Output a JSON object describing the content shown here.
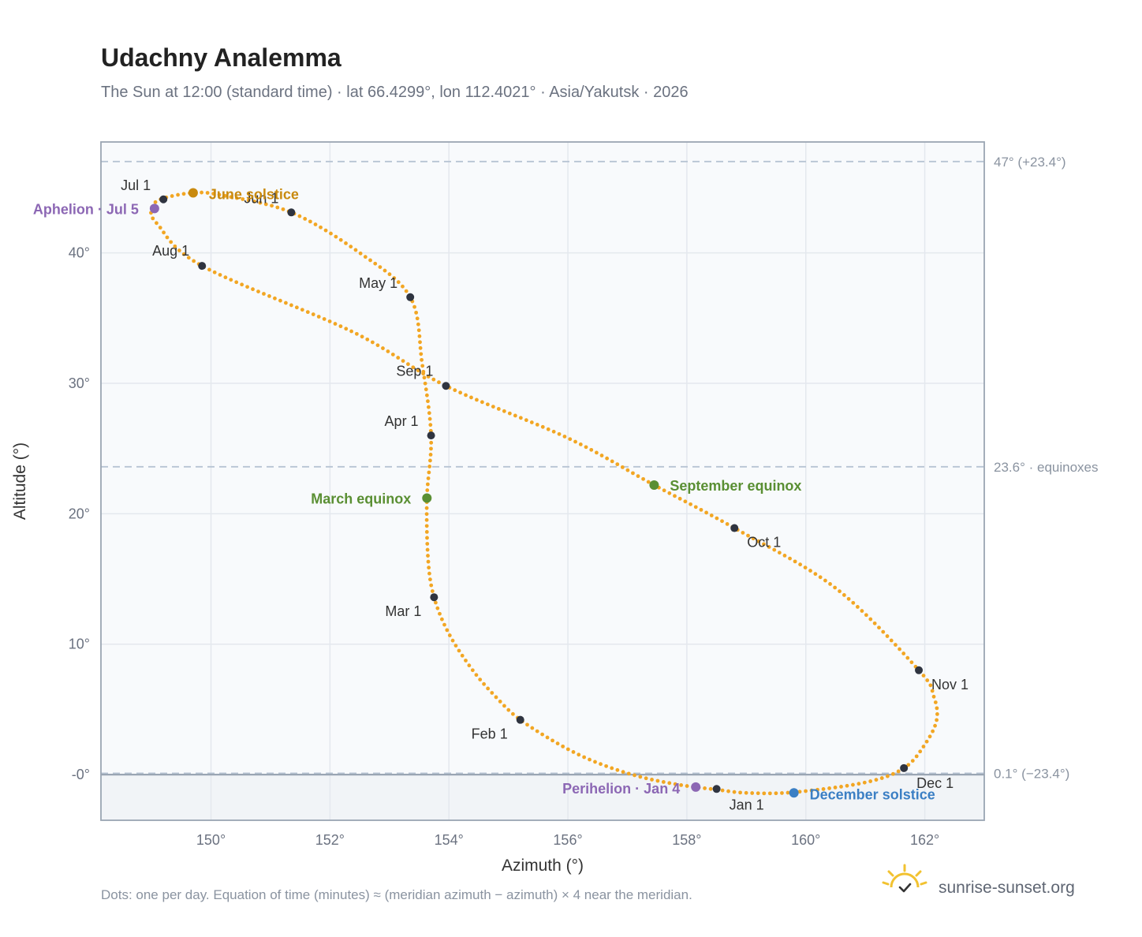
{
  "header": {
    "title": "Udachny Analemma",
    "subtitle": "The Sun at 12:00 (standard time) · lat 66.4299°, lon 112.4021° · Asia/Yakutsk · 2026"
  },
  "footer": {
    "note": "Dots: one per day. Equation of time (minutes) ≈ (meridian azimuth − azimuth) × 4 near the meridian.",
    "brand": "sunrise-sunset.org",
    "brand_icon": "sun-check-icon"
  },
  "colors": {
    "curve": "#f2a623",
    "month_marker": "#2f3440",
    "june_solstice": "#c98a0f",
    "december_solstice": "#3b7fc4",
    "equinox": "#5a8f33",
    "apsis": "#8c67b4",
    "plot_bg": "#f8fafc",
    "below_horizon": "#f1f4f7",
    "grid": "#e4e8ee",
    "ref_line": "#b7c4d3",
    "frame": "#9aa5b3"
  },
  "chart_data": {
    "type": "scatter",
    "title": "Udachny Analemma",
    "xlabel": "Azimuth (°)",
    "ylabel": "Altitude (°)",
    "xlim": [
      148.15,
      163.0
    ],
    "ylim": [
      -3.5,
      48.5
    ],
    "x_ticks": [
      150,
      152,
      154,
      156,
      158,
      160,
      162
    ],
    "x_tick_labels": [
      "150°",
      "152°",
      "154°",
      "156°",
      "158°",
      "160°",
      "162°"
    ],
    "y_ticks": [
      0,
      10,
      20,
      30,
      40
    ],
    "y_tick_labels": [
      "-0°",
      "10°",
      "20°",
      "30°",
      "40°"
    ],
    "grid": true,
    "horizon_altitude": 0,
    "reference_lines": [
      {
        "y": 47.0,
        "label": "47° (+23.4°)"
      },
      {
        "y": 23.6,
        "label": "23.6° · equinoxes"
      },
      {
        "y": 0.1,
        "label": "0.1° (−23.4°)"
      }
    ],
    "path_points": [
      [
        158.5,
        -1.15
      ],
      [
        157.9,
        -0.8
      ],
      [
        157.2,
        -0.15
      ],
      [
        156.5,
        0.9
      ],
      [
        155.9,
        2.2
      ],
      [
        155.2,
        4.2
      ],
      [
        154.8,
        5.9
      ],
      [
        154.4,
        8.0
      ],
      [
        154.0,
        10.8
      ],
      [
        153.75,
        13.6
      ],
      [
        153.65,
        16.5
      ],
      [
        153.63,
        21.2
      ],
      [
        153.7,
        26.0
      ],
      [
        153.55,
        31.5
      ],
      [
        153.35,
        36.6
      ],
      [
        152.5,
        40.0
      ],
      [
        151.35,
        43.1
      ],
      [
        150.2,
        44.4
      ],
      [
        149.7,
        44.6
      ],
      [
        149.15,
        44.1
      ],
      [
        149.0,
        43.3
      ],
      [
        149.1,
        42.2
      ],
      [
        149.85,
        39.0
      ],
      [
        152.4,
        33.9
      ],
      [
        153.95,
        29.8
      ],
      [
        156.0,
        25.8
      ],
      [
        157.45,
        22.2
      ],
      [
        158.8,
        18.9
      ],
      [
        160.5,
        14.3
      ],
      [
        161.9,
        8.0
      ],
      [
        162.15,
        6.0
      ],
      [
        162.2,
        4.2
      ],
      [
        162.0,
        2.3
      ],
      [
        161.65,
        0.5
      ],
      [
        161.0,
        -0.6
      ],
      [
        159.8,
        -1.35
      ],
      [
        159.0,
        -1.4
      ],
      [
        158.5,
        -1.15
      ]
    ],
    "month_markers": [
      {
        "label": "Jan 1",
        "az": 158.5,
        "alt": -1.1
      },
      {
        "label": "Feb 1",
        "az": 155.2,
        "alt": 4.2
      },
      {
        "label": "Mar 1",
        "az": 153.75,
        "alt": 13.6
      },
      {
        "label": "Apr 1",
        "az": 153.7,
        "alt": 26.0
      },
      {
        "label": "May 1",
        "az": 153.35,
        "alt": 36.6
      },
      {
        "label": "Jun 1",
        "az": 151.35,
        "alt": 43.1
      },
      {
        "label": "Jul 1",
        "az": 149.2,
        "alt": 44.1
      },
      {
        "label": "Aug 1",
        "az": 149.85,
        "alt": 39.0
      },
      {
        "label": "Sep 1",
        "az": 153.95,
        "alt": 29.8
      },
      {
        "label": "Oct 1",
        "az": 158.8,
        "alt": 18.9
      },
      {
        "label": "Nov 1",
        "az": 161.9,
        "alt": 8.0
      },
      {
        "label": "Dec 1",
        "az": 161.65,
        "alt": 0.5
      }
    ],
    "events": [
      {
        "label": "June solstice",
        "az": 149.7,
        "alt": 44.6,
        "color": "#c98a0f"
      },
      {
        "label": "Aphelion · Jul 5",
        "az": 149.05,
        "alt": 43.4,
        "color": "#8c67b4"
      },
      {
        "label": "March equinox",
        "az": 153.63,
        "alt": 21.2,
        "color": "#5a8f33"
      },
      {
        "label": "September equinox",
        "az": 157.45,
        "alt": 22.2,
        "color": "#5a8f33"
      },
      {
        "label": "Perihelion · Jan 4",
        "az": 158.15,
        "alt": -0.95,
        "color": "#8c67b4"
      },
      {
        "label": "December solstice",
        "az": 159.8,
        "alt": -1.4,
        "color": "#3b7fc4"
      }
    ]
  }
}
